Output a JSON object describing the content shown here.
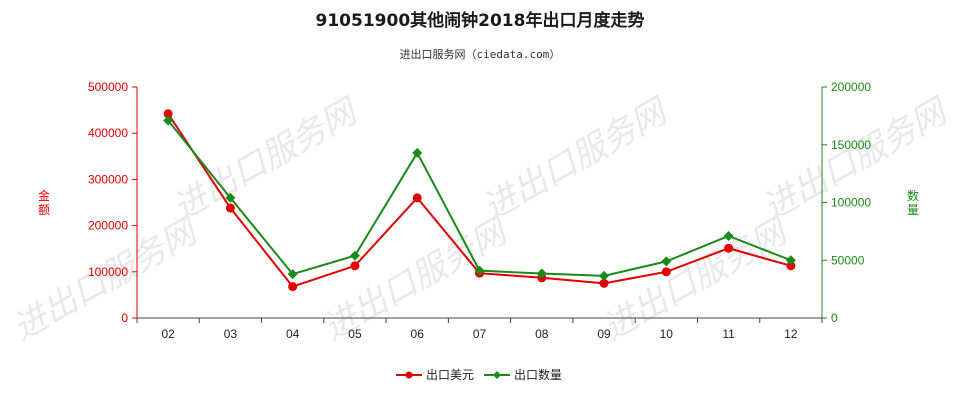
{
  "chart_data": {
    "type": "line",
    "title": "91051900其他闹钟2018年出口月度走势",
    "subtitle": "进出口服务网（ciedata.com）",
    "categories": [
      "02",
      "03",
      "04",
      "05",
      "06",
      "07",
      "08",
      "09",
      "10",
      "11",
      "12"
    ],
    "series": [
      {
        "name": "出口美元",
        "axis": "left",
        "color": "#e00000",
        "marker": "circle",
        "values": [
          442000,
          238000,
          68000,
          113000,
          260000,
          97000,
          87000,
          75000,
          100000,
          151000,
          113000
        ]
      },
      {
        "name": "出口数量",
        "axis": "right",
        "color": "#1a8a1a",
        "marker": "diamond",
        "values": [
          171000,
          104000,
          38000,
          54000,
          143000,
          41000,
          38500,
          36500,
          49000,
          71000,
          50000
        ]
      }
    ],
    "y_left": {
      "label": "金额",
      "ylim": [
        0,
        500000
      ],
      "ticks": [
        "0",
        "100000",
        "200000",
        "300000",
        "400000",
        "500000"
      ],
      "color": "#e00000"
    },
    "y_right": {
      "label": "数量",
      "ylim": [
        0,
        200000
      ],
      "ticks": [
        "0",
        "50000",
        "100000",
        "150000",
        "200000"
      ],
      "color": "#1a8a1a"
    },
    "grid": false,
    "legend_position": "bottom-center",
    "watermark": "进出口服务网"
  }
}
